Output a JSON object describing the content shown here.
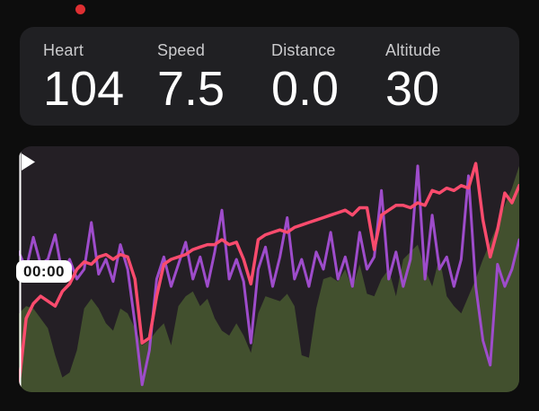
{
  "app": {
    "bg": "#0d0d0d",
    "recording_dot_color": "#de2f32"
  },
  "stats": {
    "card_bg": "#202023",
    "items": [
      {
        "label": "Heart",
        "value": "104"
      },
      {
        "label": "Speed",
        "value": "7.5"
      },
      {
        "label": "Distance",
        "value": "0.0"
      },
      {
        "label": "Altitude",
        "value": "30"
      }
    ]
  },
  "player": {
    "time_label": "00:00",
    "playhead_color": "#ffffff",
    "badge_bg": "#ffffff",
    "badge_text_color": "#141414"
  },
  "chart_data": {
    "type": "area",
    "title": "",
    "xlabel": "",
    "ylabel": "",
    "axes_visible": false,
    "grid": false,
    "legend": "none",
    "bg": "#241f25",
    "x": "70 evenly spaced samples across full activity duration (no tick labels shown)",
    "y_unit": "percent of plot height from bottom (no numeric axis shown)",
    "series": [
      {
        "name": "altitude",
        "type": "area",
        "color": "#42502e",
        "width": 0,
        "values": [
          32,
          35,
          34,
          30,
          26,
          15,
          6,
          8,
          17,
          34,
          38,
          34,
          28,
          25,
          34,
          32,
          26,
          19,
          21,
          25,
          28,
          19,
          35,
          39,
          41,
          35,
          38,
          30,
          25,
          23,
          28,
          23,
          16,
          32,
          39,
          38,
          37,
          40,
          35,
          15,
          14,
          34,
          46,
          47,
          45,
          50,
          42,
          52,
          40,
          39,
          46,
          50,
          39,
          54,
          57,
          60,
          50,
          43,
          55,
          39,
          35,
          32,
          39,
          46,
          54,
          61,
          68,
          76,
          83,
          92
        ]
      },
      {
        "name": "speed",
        "type": "line",
        "color": "#9e4ccb",
        "width": 3,
        "values": [
          57,
          50,
          63,
          52,
          54,
          64,
          48,
          54,
          46,
          50,
          69,
          48,
          54,
          45,
          60,
          50,
          28,
          3,
          17,
          46,
          55,
          43,
          52,
          61,
          46,
          55,
          43,
          57,
          74,
          46,
          54,
          45,
          20,
          50,
          59,
          43,
          55,
          71,
          46,
          54,
          43,
          57,
          50,
          65,
          46,
          55,
          43,
          65,
          50,
          55,
          82,
          46,
          57,
          43,
          54,
          92,
          46,
          72,
          50,
          55,
          43,
          54,
          88,
          43,
          21,
          11,
          52,
          43,
          50,
          62
        ]
      },
      {
        "name": "heart",
        "type": "line",
        "color": "#fa4b6d",
        "width": 3.5,
        "values": [
          3,
          30,
          36,
          39,
          37,
          35,
          41,
          44,
          50,
          53,
          52,
          55,
          56,
          54,
          56,
          55,
          46,
          20,
          22,
          39,
          52,
          54,
          55,
          56,
          58,
          59,
          60,
          60,
          62,
          60,
          61,
          54,
          44,
          62,
          64,
          65,
          66,
          65,
          67,
          68,
          69,
          70,
          71,
          72,
          73,
          74,
          72,
          75,
          75,
          58,
          72,
          74,
          76,
          76,
          75,
          77,
          76,
          82,
          81,
          83,
          82,
          84,
          83,
          93,
          70,
          55,
          66,
          81,
          77,
          84
        ]
      }
    ]
  }
}
